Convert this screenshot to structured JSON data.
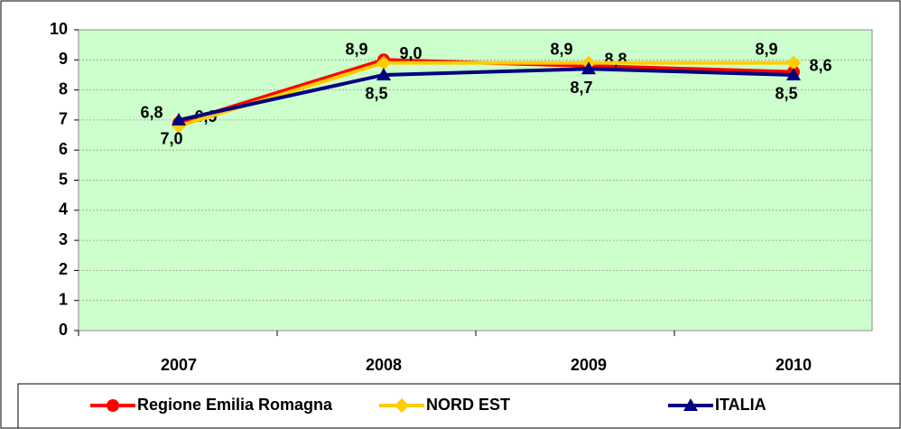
{
  "chart_data": {
    "type": "line",
    "categories": [
      "2007",
      "2008",
      "2009",
      "2010"
    ],
    "series": [
      {
        "name": "Regione Emilia Romagna",
        "color": "#ff0000",
        "values": [
          6.9,
          9.0,
          8.8,
          8.6
        ],
        "value_labels": [
          "6,9",
          "9,0",
          "8,8",
          "8,6"
        ]
      },
      {
        "name": "NORD EST",
        "color": "#ffcc00",
        "values": [
          6.8,
          8.9,
          8.9,
          8.9
        ],
        "value_labels": [
          "6,8",
          "8,9",
          "8,9",
          "8,9"
        ]
      },
      {
        "name": "ITALIA",
        "color": "#000080",
        "values": [
          7.0,
          8.5,
          8.7,
          8.5
        ],
        "value_labels": [
          "7,0",
          "8,5",
          "8,7",
          "8,5"
        ]
      }
    ],
    "ylim": [
      0,
      10
    ],
    "yticks": [
      0,
      1,
      2,
      3,
      4,
      5,
      6,
      7,
      8,
      9,
      10
    ],
    "grid": true
  }
}
